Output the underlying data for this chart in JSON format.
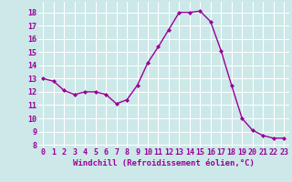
{
  "x": [
    0,
    1,
    2,
    3,
    4,
    5,
    6,
    7,
    8,
    9,
    10,
    11,
    12,
    13,
    14,
    15,
    16,
    17,
    18,
    19,
    20,
    21,
    22,
    23
  ],
  "y": [
    13.0,
    12.8,
    12.1,
    11.8,
    12.0,
    12.0,
    11.8,
    11.1,
    11.4,
    12.5,
    14.2,
    15.4,
    16.7,
    18.0,
    18.0,
    18.1,
    17.3,
    15.1,
    12.5,
    10.0,
    9.1,
    8.7,
    8.5,
    8.5
  ],
  "line_color": "#990099",
  "marker": "D",
  "marker_size": 2,
  "background_color": "#cce8e8",
  "grid_color": "#ffffff",
  "xlabel": "Windchill (Refroidissement éolien,°C)",
  "xlabel_fontsize": 6.5,
  "xlabel_color": "#990099",
  "ylabel_ticks": [
    8,
    9,
    10,
    11,
    12,
    13,
    14,
    15,
    16,
    17,
    18
  ],
  "xtick_labels": [
    "0",
    "1",
    "2",
    "3",
    "4",
    "5",
    "6",
    "7",
    "8",
    "9",
    "10",
    "11",
    "12",
    "13",
    "14",
    "15",
    "16",
    "17",
    "18",
    "19",
    "20",
    "21",
    "22",
    "23"
  ],
  "ylim": [
    7.8,
    18.8
  ],
  "xlim": [
    -0.5,
    23.5
  ],
  "tick_fontsize": 6,
  "tick_color": "#990099"
}
